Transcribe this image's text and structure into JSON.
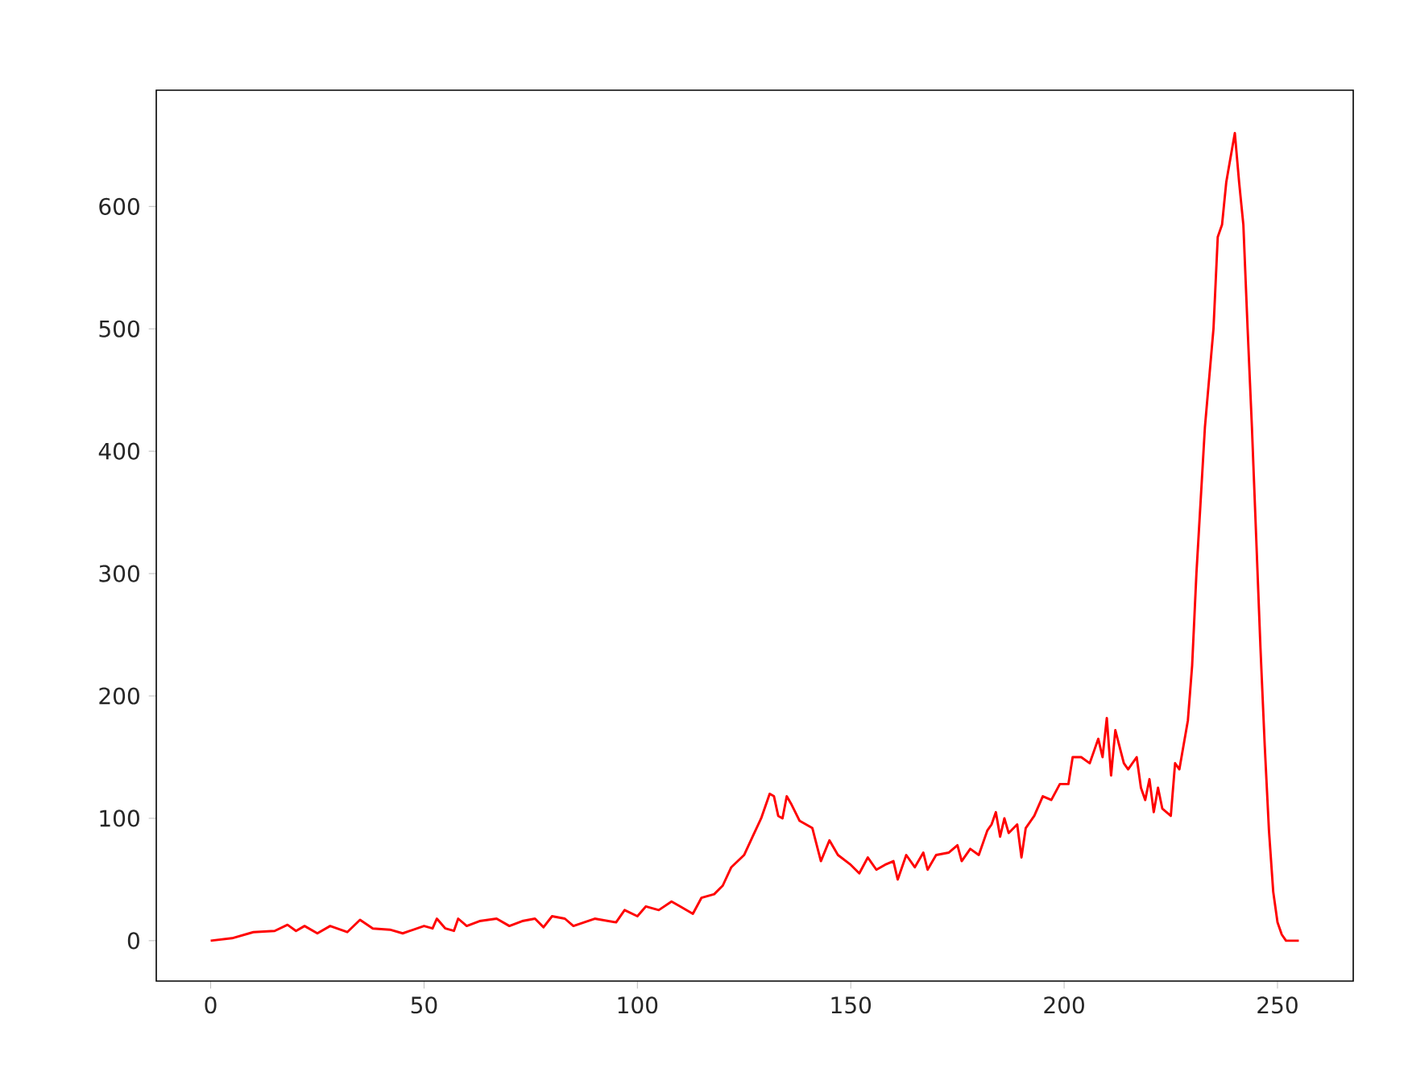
{
  "chart_data": {
    "type": "line",
    "xlim": [
      -12.75,
      267.75
    ],
    "ylim": [
      -33,
      695
    ],
    "xticks": [
      0,
      50,
      100,
      150,
      200,
      250
    ],
    "yticks": [
      0,
      100,
      200,
      300,
      400,
      500,
      600
    ],
    "grid": false,
    "marker": "none",
    "line_style": "solid",
    "series": [
      {
        "color": "#ff0000",
        "x": [
          0,
          5,
          10,
          15,
          18,
          20,
          22,
          25,
          28,
          32,
          35,
          38,
          42,
          45,
          50,
          52,
          53,
          55,
          57,
          58,
          60,
          63,
          67,
          70,
          73,
          76,
          78,
          80,
          83,
          85,
          90,
          95,
          97,
          100,
          102,
          105,
          108,
          110,
          113,
          115,
          118,
          120,
          122,
          125,
          127,
          129,
          131,
          132,
          133,
          134,
          135,
          136,
          138,
          141,
          143,
          145,
          147,
          150,
          152,
          154,
          156,
          158,
          160,
          161,
          163,
          165,
          167,
          168,
          170,
          173,
          175,
          176,
          178,
          180,
          182,
          183,
          184,
          185,
          186,
          187,
          189,
          190,
          191,
          193,
          195,
          197,
          199,
          201,
          202,
          204,
          206,
          207,
          208,
          209,
          210,
          211,
          212,
          214,
          215,
          217,
          218,
          219,
          220,
          221,
          222,
          223,
          225,
          226,
          227,
          228,
          229,
          230,
          231,
          232,
          233,
          234,
          235,
          236,
          237,
          238,
          240,
          241,
          242,
          243,
          244,
          245,
          246,
          247,
          248,
          249,
          250,
          251,
          252,
          255
        ],
        "values": [
          0,
          2,
          7,
          8,
          13,
          8,
          12,
          6,
          12,
          7,
          17,
          10,
          9,
          6,
          12,
          10,
          18,
          10,
          8,
          18,
          12,
          16,
          18,
          12,
          16,
          18,
          11,
          20,
          18,
          12,
          18,
          15,
          25,
          20,
          28,
          25,
          32,
          28,
          22,
          35,
          38,
          45,
          60,
          70,
          85,
          100,
          120,
          118,
          102,
          100,
          118,
          112,
          98,
          92,
          65,
          82,
          70,
          62,
          55,
          68,
          58,
          62,
          65,
          50,
          70,
          60,
          72,
          58,
          70,
          72,
          78,
          65,
          75,
          70,
          90,
          95,
          105,
          85,
          100,
          88,
          95,
          68,
          92,
          102,
          118,
          115,
          128,
          128,
          150,
          150,
          145,
          155,
          165,
          150,
          182,
          135,
          172,
          145,
          140,
          150,
          125,
          115,
          132,
          105,
          125,
          108,
          102,
          145,
          140,
          160,
          180,
          225,
          300,
          360,
          420,
          460,
          500,
          575,
          585,
          620,
          660,
          620,
          585,
          500,
          420,
          330,
          240,
          160,
          90,
          40,
          15,
          5,
          0,
          0
        ]
      }
    ]
  }
}
